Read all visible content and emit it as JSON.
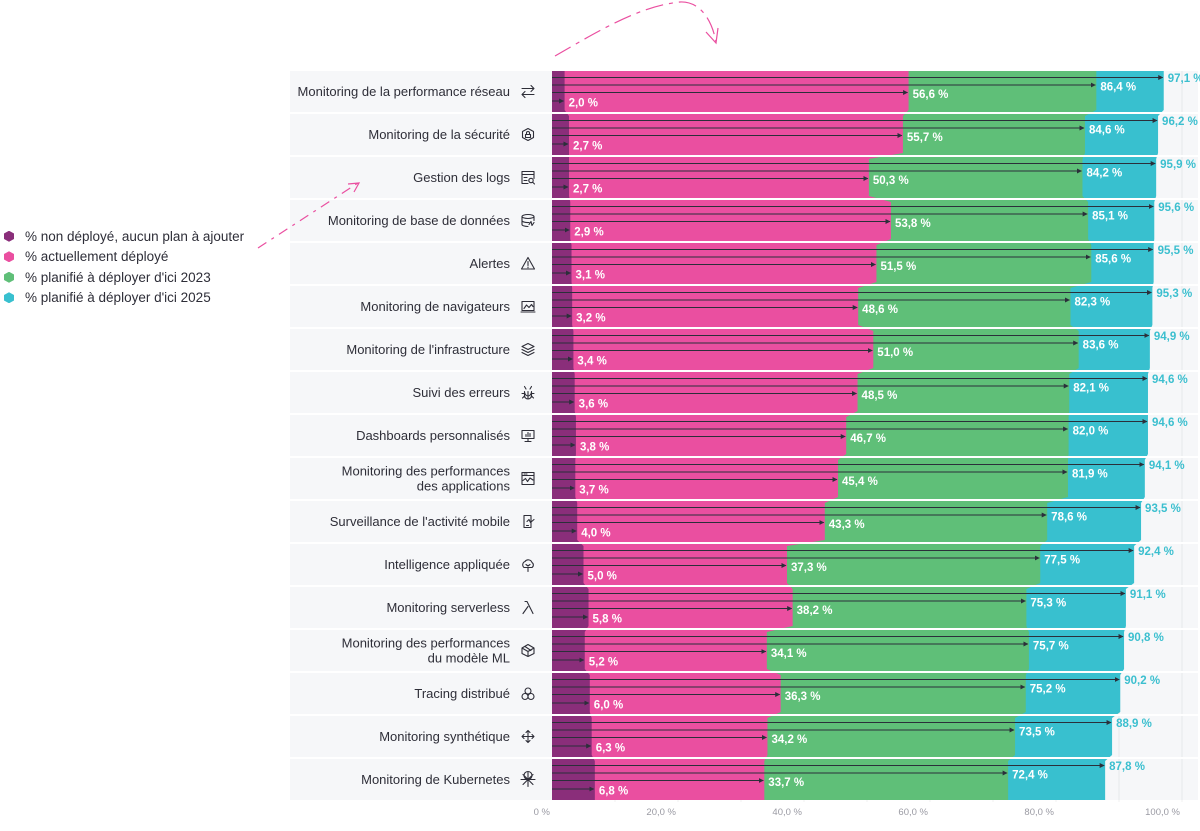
{
  "colors": {
    "not_deployed": "#8a2e7a",
    "deployed": "#ea4fa0",
    "planned_2023": "#5fbf78",
    "planned_2025": "#38c0cf",
    "row_bg": "#f6f7f9",
    "arrow": "#ea4fa0",
    "pointer": "#2b2f3a",
    "total_text": "#3bbfcf"
  },
  "legend": [
    {
      "key": "not_deployed",
      "label": "% non déployé, aucun plan à ajouter"
    },
    {
      "key": "deployed",
      "label": "% actuellement déployé"
    },
    {
      "key": "planned_2023",
      "label": "% planifié à déployer d'ici 2023"
    },
    {
      "key": "planned_2025",
      "label": "% planifié à déployer d'ici 2025"
    }
  ],
  "chart_data": {
    "type": "bar",
    "orientation": "horizontal-stacked-cumulative",
    "title": "",
    "xlabel": "",
    "ylabel": "",
    "xlim": [
      0,
      100
    ],
    "grid": true,
    "legend_position": "left",
    "x_ticks": [
      "0 %",
      "20,0 %",
      "40,0 %",
      "60,0 %",
      "80,0 %",
      "100,0 %"
    ],
    "x_tick_values": [
      0,
      20,
      40,
      60,
      80,
      100
    ],
    "categories": [
      {
        "label": [
          "Monitoring de la performance réseau"
        ],
        "icon": "network-arrows-icon"
      },
      {
        "label": [
          "Monitoring de la sécurité"
        ],
        "icon": "security-lock-icon"
      },
      {
        "label": [
          "Gestion des logs"
        ],
        "icon": "log-search-icon"
      },
      {
        "label": [
          "Monitoring de base de données"
        ],
        "icon": "database-icon"
      },
      {
        "label": [
          "Alertes"
        ],
        "icon": "warning-triangle-icon"
      },
      {
        "label": [
          "Monitoring de navigateurs"
        ],
        "icon": "browser-chart-icon"
      },
      {
        "label": [
          "Monitoring de l'infrastructure"
        ],
        "icon": "layers-icon"
      },
      {
        "label": [
          "Suivi des erreurs"
        ],
        "icon": "bug-icon"
      },
      {
        "label": [
          "Dashboards personnalisés"
        ],
        "icon": "dashboard-monitor-icon"
      },
      {
        "label": [
          "Monitoring des performances",
          "des applications"
        ],
        "icon": "app-performance-icon"
      },
      {
        "label": [
          "Surveillance de l'activité mobile"
        ],
        "icon": "mobile-activity-icon"
      },
      {
        "label": [
          "Intelligence appliquée"
        ],
        "icon": "cloud-brain-icon"
      },
      {
        "label": [
          "Monitoring serverless"
        ],
        "icon": "lambda-icon"
      },
      {
        "label": [
          "Monitoring des performances",
          "du modèle ML"
        ],
        "icon": "ml-cube-icon"
      },
      {
        "label": [
          "Tracing distribué"
        ],
        "icon": "distributed-circles-icon"
      },
      {
        "label": [
          "Monitoring synthétique"
        ],
        "icon": "synthetic-arrows-icon"
      },
      {
        "label": [
          "Monitoring de Kubernetes"
        ],
        "icon": "kubernetes-wheel-icon"
      }
    ],
    "series": [
      {
        "name": "% non déployé, aucun plan à ajouter",
        "key": "not_deployed",
        "values": [
          2.0,
          2.7,
          2.7,
          2.9,
          3.1,
          3.2,
          3.4,
          3.6,
          3.8,
          3.7,
          4.0,
          5.0,
          5.8,
          5.2,
          6.0,
          6.3,
          6.8
        ]
      },
      {
        "name": "% actuellement déployé",
        "key": "deployed",
        "values": [
          56.6,
          55.7,
          50.3,
          53.8,
          51.5,
          48.6,
          51.0,
          48.5,
          46.7,
          45.4,
          43.3,
          37.3,
          38.2,
          34.1,
          36.3,
          34.2,
          33.7
        ]
      },
      {
        "name": "% planifié à déployer d'ici 2023",
        "key": "planned_2023",
        "values": [
          86.4,
          84.6,
          84.2,
          85.1,
          85.6,
          82.3,
          83.6,
          82.1,
          82.0,
          81.9,
          78.6,
          77.5,
          75.3,
          75.7,
          75.2,
          73.5,
          72.4
        ]
      },
      {
        "name": "% planifié à déployer d'ici 2025",
        "key": "planned_2025",
        "values": [
          97.1,
          96.2,
          95.9,
          95.6,
          95.5,
          95.3,
          94.9,
          94.6,
          94.6,
          94.1,
          93.5,
          92.4,
          91.1,
          90.8,
          90.2,
          88.9,
          87.8
        ]
      }
    ],
    "value_labels": {
      "not_deployed": [
        "2,0 %",
        "2,7 %",
        "2,7 %",
        "2,9 %",
        "3,1 %",
        "3,2 %",
        "3,4 %",
        "3,6 %",
        "3,8 %",
        "3,7 %",
        "4,0 %",
        "5,0 %",
        "5,8 %",
        "5,2 %",
        "6,0 %",
        "6,3 %",
        "6,8 %"
      ],
      "deployed": [
        "56,6 %",
        "55,7 %",
        "50,3 %",
        "53,8 %",
        "51,5 %",
        "48,6 %",
        "51,0 %",
        "48,5 %",
        "46,7 %",
        "45,4 %",
        "43,3 %",
        "37,3 %",
        "38,2 %",
        "34,1 %",
        "36,3 %",
        "34,2 %",
        "33,7 %"
      ],
      "planned_2023": [
        "86,4 %",
        "84,6 %",
        "84,2 %",
        "85,1 %",
        "85,6 %",
        "82,3 %",
        "83,6 %",
        "82,1 %",
        "82,0 %",
        "81,9 %",
        "78,6 %",
        "77,5 %",
        "75,3 %",
        "75,7 %",
        "75,2 %",
        "73,5 %",
        "72,4 %"
      ],
      "planned_2025": [
        "97,1 %",
        "96,2 %",
        "95,9 %",
        "95,6 %",
        "95,5 %",
        "95,3 %",
        "94,9 %",
        "94,6 %",
        "94,6 %",
        "94,1 %",
        "93,5 %",
        "92,4 %",
        "91,1 %",
        "90,8 %",
        "90,2 %",
        "88,9 %",
        "87,8 %"
      ]
    }
  }
}
